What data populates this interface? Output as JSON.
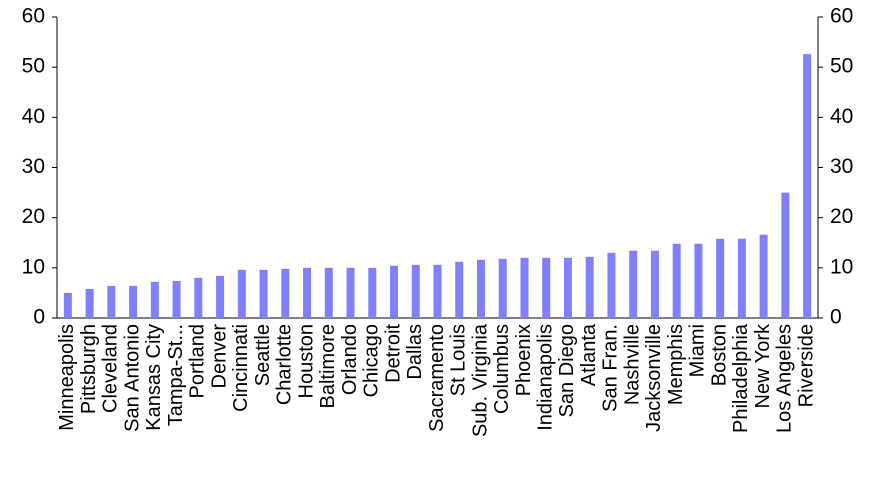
{
  "chart_data": {
    "type": "bar",
    "categories": [
      "Minneapolis",
      "Pittsburgh",
      "Cleveland",
      "San Antonio",
      "Kansas City",
      "Tampa-St...",
      "Portland",
      "Denver",
      "Cincinnati",
      "Seattle",
      "Charlotte",
      "Houston",
      "Baltimore",
      "Orlando",
      "Chicago",
      "Detroit",
      "Dallas",
      "Sacramento",
      "St Louis",
      "Sub. Virginia",
      "Columbus",
      "Phoenix",
      "Indianapolis",
      "San Diego",
      "Atlanta",
      "San Fran.",
      "Nashville",
      "Jacksonville",
      "Memphis",
      "Miami",
      "Boston",
      "Philadelphia",
      "New York",
      "Los Angeles",
      "Riverside"
    ],
    "values": [
      5.0,
      5.8,
      6.4,
      6.4,
      7.2,
      7.4,
      8.0,
      8.4,
      9.6,
      9.6,
      9.8,
      10.0,
      10.0,
      10.0,
      10.0,
      10.4,
      10.6,
      10.6,
      11.2,
      11.6,
      11.8,
      12.0,
      12.0,
      12.0,
      12.2,
      13.0,
      13.4,
      13.4,
      14.8,
      14.8,
      15.8,
      15.8,
      16.6,
      25.0,
      52.6
    ],
    "color": "#8080ff",
    "ylim": [
      0,
      60
    ],
    "yticks": [
      0,
      10,
      20,
      30,
      40,
      50,
      60
    ],
    "y2lim": [
      0,
      60
    ],
    "y2ticks": [
      0,
      10,
      20,
      30,
      40,
      50,
      60
    ],
    "grid": false
  }
}
